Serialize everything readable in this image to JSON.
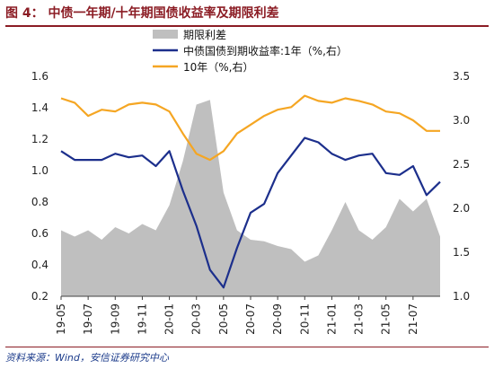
{
  "header": {
    "title": "图 4：  中债一年期/十年期国债收益率及期限利差"
  },
  "footer": {
    "source": "资料来源：Wind，安信证券研究中心"
  },
  "colors": {
    "spread": "#bfbfbf",
    "one_year": "#1c2f8c",
    "ten_year": "#f5a623",
    "title": "#8b1c24"
  },
  "chart_data": {
    "type": "line",
    "legend_position": "top-center",
    "grid": false,
    "x_ticks": [
      "19-05",
      "19-07",
      "19-09",
      "19-11",
      "20-01",
      "20-03",
      "20-05",
      "20-07",
      "20-09",
      "20-11",
      "21-01",
      "21-03",
      "21-05",
      "21-07"
    ],
    "x": [
      "19-05",
      "19-06",
      "19-07",
      "19-08",
      "19-09",
      "19-10",
      "19-11",
      "19-12",
      "20-01",
      "20-02",
      "20-03",
      "20-04",
      "20-05",
      "20-06",
      "20-07",
      "20-08",
      "20-09",
      "20-10",
      "20-11",
      "20-12",
      "21-01",
      "21-02",
      "21-03",
      "21-04",
      "21-05",
      "21-06",
      "21-07",
      "21-08",
      "21-09"
    ],
    "y_left": {
      "range": [
        0.2,
        1.6
      ],
      "ticks": [
        "0.2",
        "0.4",
        "0.6",
        "0.8",
        "1.0",
        "1.2",
        "1.4",
        "1.6"
      ]
    },
    "y_right": {
      "range": [
        1.0,
        3.5
      ],
      "ticks": [
        "1.0",
        "1.5",
        "2.0",
        "2.5",
        "3.0",
        "3.5"
      ]
    },
    "series": [
      {
        "name": "期限利差",
        "type": "area",
        "axis": "left",
        "values": [
          0.62,
          0.58,
          0.62,
          0.56,
          0.64,
          0.6,
          0.66,
          0.62,
          0.78,
          1.06,
          1.42,
          1.45,
          0.86,
          0.62,
          0.56,
          0.55,
          0.52,
          0.5,
          0.42,
          0.46,
          0.62,
          0.8,
          0.62,
          0.56,
          0.64,
          0.82,
          0.74,
          0.82,
          0.58
        ]
      },
      {
        "name": "中债国债到期收益率:1年（%,右）",
        "type": "line",
        "axis": "right",
        "values": [
          2.65,
          2.55,
          2.55,
          2.55,
          2.62,
          2.58,
          2.6,
          2.48,
          2.65,
          2.2,
          1.8,
          1.3,
          1.1,
          1.55,
          1.95,
          2.05,
          2.4,
          2.6,
          2.8,
          2.75,
          2.62,
          2.55,
          2.6,
          2.62,
          2.4,
          2.38,
          2.48,
          2.15,
          2.3
        ]
      },
      {
        "name": "10年（%,右）",
        "type": "line",
        "axis": "right",
        "values": [
          3.25,
          3.2,
          3.05,
          3.12,
          3.1,
          3.18,
          3.2,
          3.18,
          3.1,
          2.85,
          2.62,
          2.55,
          2.65,
          2.85,
          2.95,
          3.05,
          3.12,
          3.15,
          3.28,
          3.22,
          3.2,
          3.25,
          3.22,
          3.18,
          3.1,
          3.08,
          3.0,
          2.88,
          2.88
        ]
      }
    ]
  }
}
